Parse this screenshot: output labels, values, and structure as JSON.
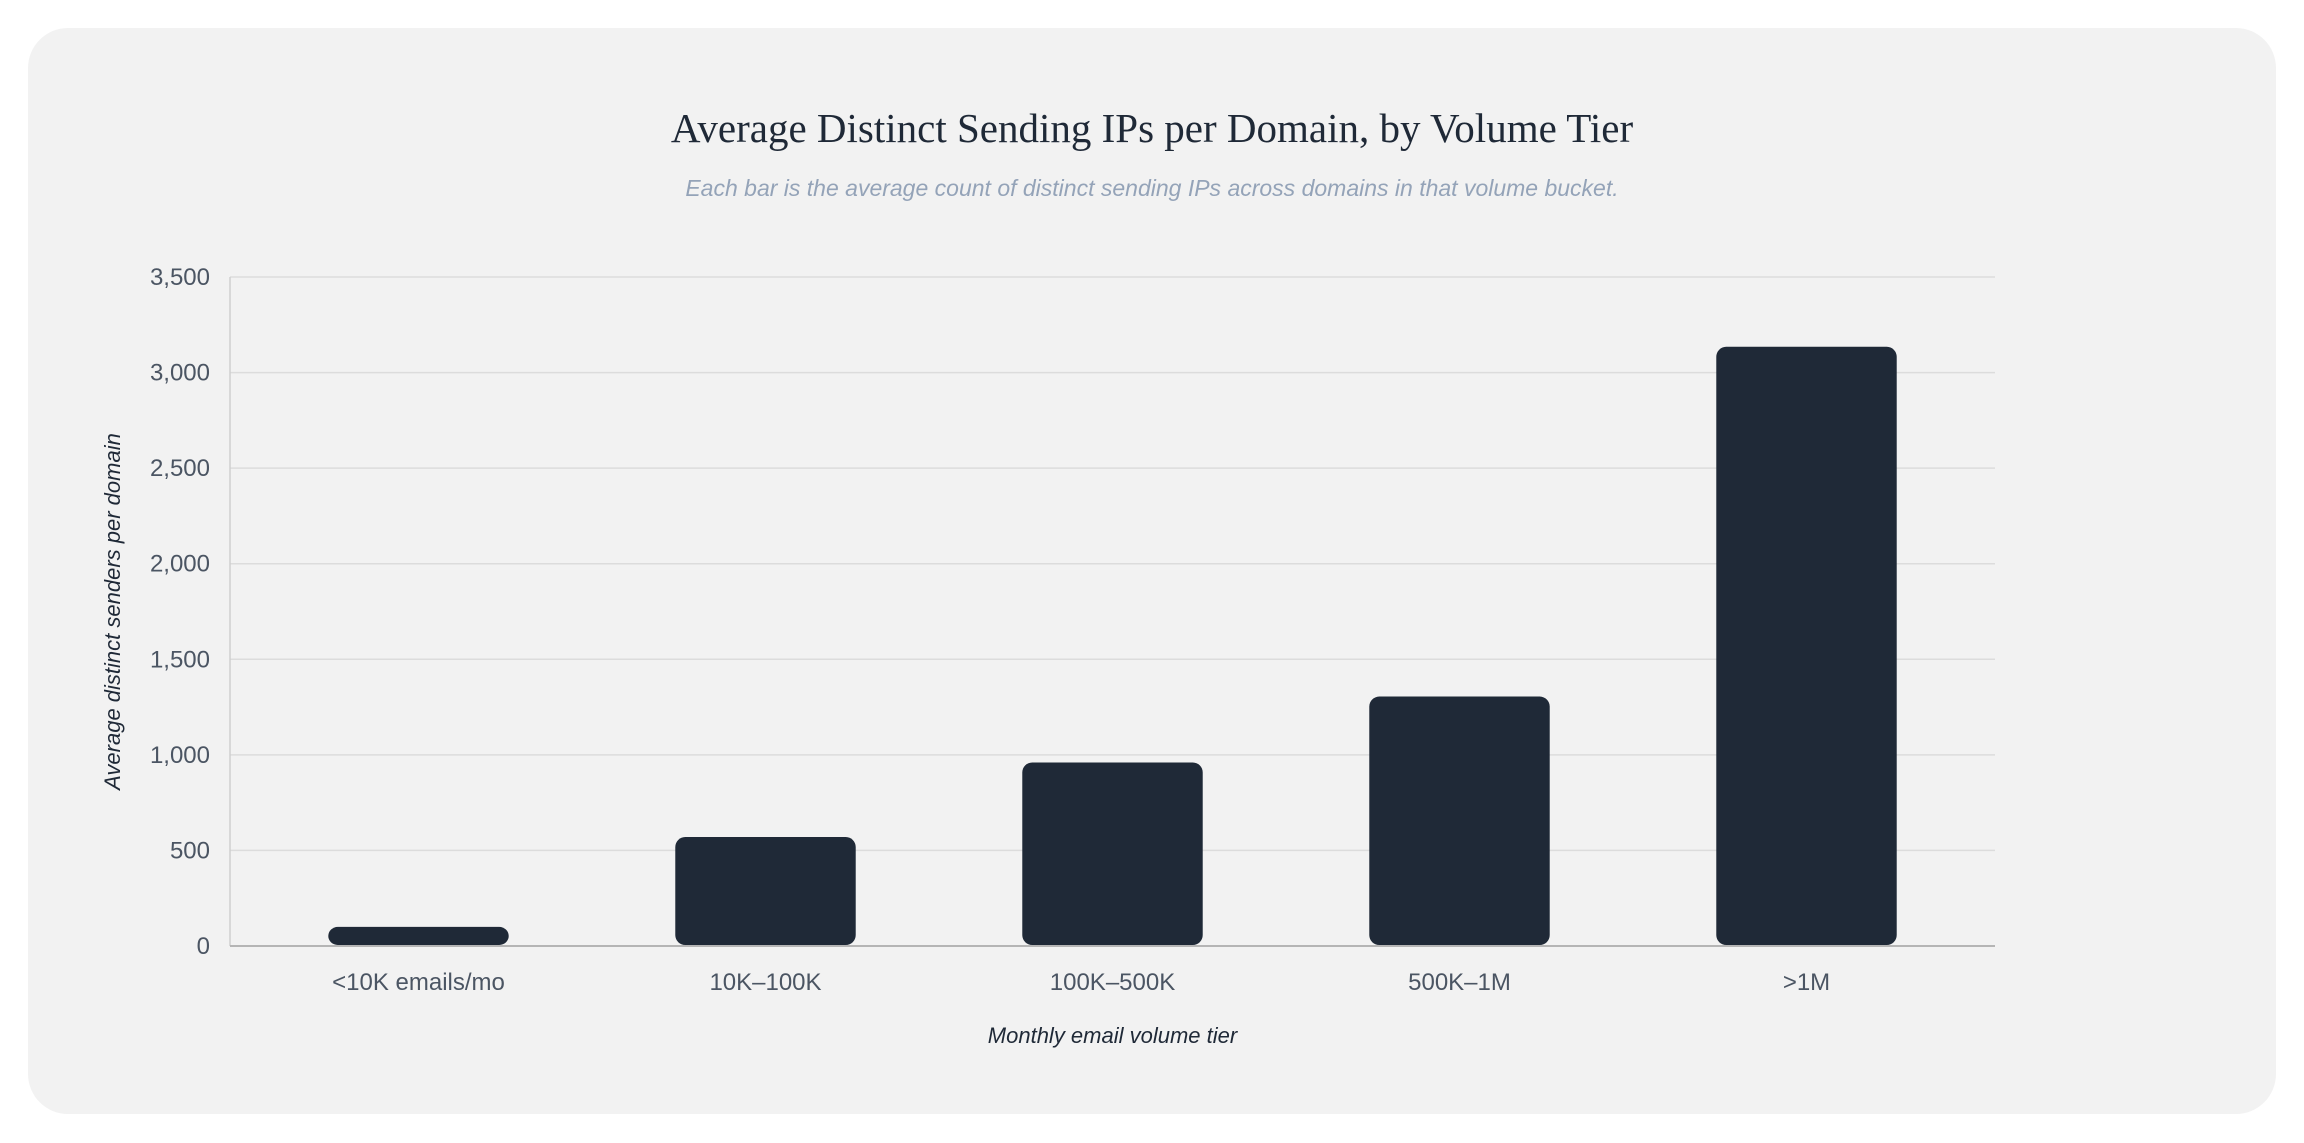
{
  "chart_data": {
    "type": "bar",
    "title": "Average Distinct Sending IPs per Domain, by Volume Tier",
    "subtitle": "Each bar is the average count of distinct sending IPs across domains in that volume bucket.",
    "xlabel": "Monthly email volume tier",
    "ylabel": "Average distinct senders per domain",
    "categories": [
      "<10K emails/mo",
      "10K–100K",
      "100K–500K",
      "500K–1M",
      ">1M"
    ],
    "values": [
      100,
      570,
      960,
      1305,
      3135
    ],
    "ylim": [
      0,
      3500
    ],
    "yticks": [
      0,
      500,
      1000,
      1500,
      2000,
      2500,
      3000,
      3500
    ],
    "ytick_labels": [
      "0",
      "500",
      "1,000",
      "1,500",
      "2,000",
      "2,500",
      "3,000",
      "3,500"
    ],
    "grid": true,
    "legend": "none",
    "bar_color": "#1f2937"
  }
}
